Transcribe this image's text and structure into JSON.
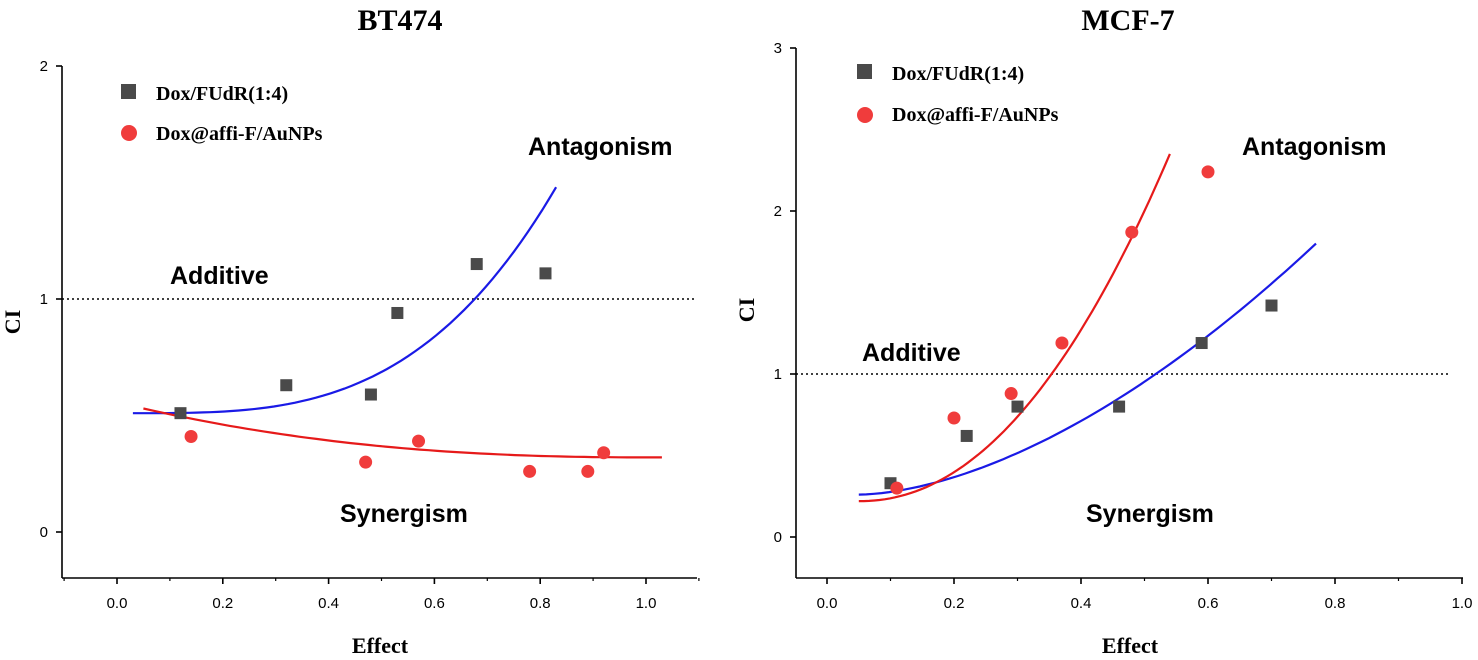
{
  "chart_data": [
    {
      "type": "scatter",
      "title": "BT474",
      "xlabel": "Effect",
      "ylabel": "CI",
      "xlim": [
        -0.1,
        1.1
      ],
      "ylim": [
        -0.2,
        2.0
      ],
      "xticks": [
        0.0,
        0.2,
        0.4,
        0.6,
        0.8,
        1.0
      ],
      "xtick_labels": [
        "0.0",
        "0.2",
        "0.4",
        "0.6",
        "0.8",
        "1.0"
      ],
      "yticks": [
        0,
        1,
        2
      ],
      "ytick_labels": [
        "0",
        "1",
        "2"
      ],
      "grid": false,
      "legend_position": "top-left",
      "reference_line": {
        "y": 1,
        "label": "Additive",
        "style": "dotted"
      },
      "region_labels": {
        "above": "Antagonism",
        "below": "Synergism"
      },
      "series": [
        {
          "name": "Dox/FUdR(1:4)",
          "marker": "square",
          "color": "#4a4a4a",
          "curve_color": "#1a1ae6",
          "x": [
            0.12,
            0.32,
            0.48,
            0.53,
            0.68,
            0.81
          ],
          "y": [
            0.51,
            0.63,
            0.59,
            0.94,
            1.15,
            1.11
          ],
          "fit": {
            "x_range": [
              0.03,
              0.83
            ],
            "y_start": 0.51,
            "y_end": 1.48
          }
        },
        {
          "name": "Dox@affi-F/AuNPs",
          "marker": "circle",
          "color": "#f03c3c",
          "curve_color": "#e61a1a",
          "x": [
            0.14,
            0.47,
            0.57,
            0.78,
            0.89,
            0.92
          ],
          "y": [
            0.41,
            0.3,
            0.39,
            0.26,
            0.26,
            0.34
          ],
          "fit": {
            "x_range": [
              0.05,
              1.03
            ],
            "y_start": 0.53,
            "y_end": 0.32
          }
        }
      ]
    },
    {
      "type": "scatter",
      "title": "MCF-7",
      "xlabel": "Effect",
      "ylabel": "CI",
      "xlim": [
        -0.05,
        1.0
      ],
      "ylim": [
        -0.25,
        3.0
      ],
      "xticks": [
        0.0,
        0.2,
        0.4,
        0.6,
        0.8,
        1.0
      ],
      "xtick_labels": [
        "0.0",
        "0.2",
        "0.4",
        "0.6",
        "0.8",
        "1.0"
      ],
      "yticks": [
        0,
        1,
        2,
        3
      ],
      "ytick_labels": [
        "0",
        "1",
        "2",
        "3"
      ],
      "grid": false,
      "legend_position": "top-left",
      "reference_line": {
        "y": 1,
        "label": "Additive",
        "style": "dotted"
      },
      "region_labels": {
        "above": "Antagonism",
        "below": "Synergism"
      },
      "series": [
        {
          "name": "Dox/FUdR(1:4)",
          "marker": "square",
          "color": "#4a4a4a",
          "curve_color": "#1a1ae6",
          "x": [
            0.1,
            0.22,
            0.3,
            0.46,
            0.59,
            0.7
          ],
          "y": [
            0.33,
            0.62,
            0.8,
            0.8,
            1.19,
            1.42
          ],
          "fit": {
            "x_range": [
              0.05,
              0.77
            ],
            "y_start": 0.26,
            "y_end": 1.8
          }
        },
        {
          "name": "Dox@affi-F/AuNPs",
          "marker": "circle",
          "color": "#f03c3c",
          "curve_color": "#e61a1a",
          "x": [
            0.11,
            0.2,
            0.29,
            0.37,
            0.48,
            0.6
          ],
          "y": [
            0.3,
            0.73,
            0.88,
            1.19,
            1.87,
            2.24
          ],
          "fit": {
            "x_range": [
              0.05,
              0.54
            ],
            "y_start": 0.22,
            "y_end": 2.35
          }
        }
      ]
    }
  ]
}
